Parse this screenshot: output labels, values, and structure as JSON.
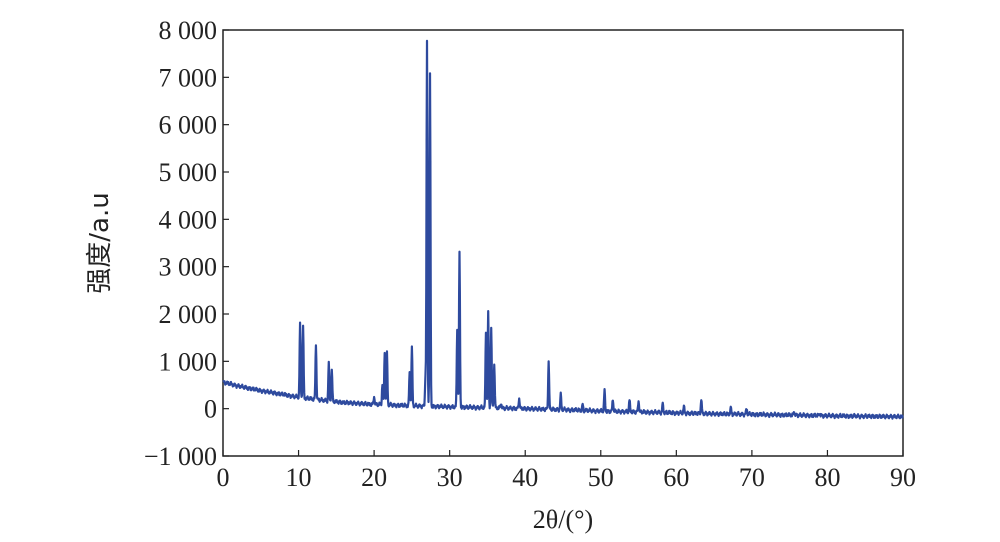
{
  "chart_data": {
    "type": "line",
    "xlabel": "2θ/(°)",
    "ylabel": "强度/a.u",
    "xlim": [
      0,
      90
    ],
    "ylim": [
      -1000,
      8000
    ],
    "xticks": [
      0,
      10,
      20,
      30,
      40,
      50,
      60,
      70,
      80,
      90
    ],
    "xtick_labels": [
      "0",
      "10",
      "20",
      "30",
      "40",
      "50",
      "60",
      "70",
      "80",
      "90"
    ],
    "yticks": [
      -1000,
      0,
      1000,
      2000,
      3000,
      4000,
      5000,
      6000,
      7000,
      8000
    ],
    "ytick_labels": [
      "−1 000",
      "0",
      "1 000",
      "2 000",
      "3 000",
      "4 000",
      "5 000",
      "6 000",
      "7 000",
      "8 000"
    ],
    "grid": false,
    "series_color": "#2e4a9e",
    "baseline": [
      [
        0,
        560
      ],
      [
        2,
        480
      ],
      [
        5,
        380
      ],
      [
        8,
        300
      ],
      [
        10,
        240
      ],
      [
        13,
        180
      ],
      [
        16,
        130
      ],
      [
        20,
        90
      ],
      [
        25,
        60
      ],
      [
        30,
        40
      ],
      [
        35,
        20
      ],
      [
        40,
        0
      ],
      [
        45,
        -20
      ],
      [
        50,
        -50
      ],
      [
        55,
        -70
      ],
      [
        60,
        -90
      ],
      [
        65,
        -110
      ],
      [
        70,
        -120
      ],
      [
        75,
        -135
      ],
      [
        80,
        -150
      ],
      [
        85,
        -160
      ],
      [
        90,
        -170
      ]
    ],
    "peaks": [
      {
        "x": 10.2,
        "y": 1780
      },
      {
        "x": 10.6,
        "y": 1750
      },
      {
        "x": 12.3,
        "y": 1380
      },
      {
        "x": 14.0,
        "y": 960
      },
      {
        "x": 14.4,
        "y": 820
      },
      {
        "x": 20.0,
        "y": 260
      },
      {
        "x": 21.1,
        "y": 520
      },
      {
        "x": 21.4,
        "y": 1180
      },
      {
        "x": 21.7,
        "y": 1170
      },
      {
        "x": 24.7,
        "y": 760
      },
      {
        "x": 25.0,
        "y": 1300
      },
      {
        "x": 26.8,
        "y": 700
      },
      {
        "x": 27.0,
        "y": 7750
      },
      {
        "x": 27.4,
        "y": 7050
      },
      {
        "x": 31.0,
        "y": 1680
      },
      {
        "x": 31.3,
        "y": 3300
      },
      {
        "x": 34.8,
        "y": 1620
      },
      {
        "x": 35.1,
        "y": 2050
      },
      {
        "x": 35.5,
        "y": 1700
      },
      {
        "x": 35.9,
        "y": 950
      },
      {
        "x": 36.8,
        "y": 120
      },
      {
        "x": 39.2,
        "y": 220
      },
      {
        "x": 43.1,
        "y": 1020
      },
      {
        "x": 44.7,
        "y": 300
      },
      {
        "x": 47.6,
        "y": 80
      },
      {
        "x": 50.5,
        "y": 380
      },
      {
        "x": 51.6,
        "y": 200
      },
      {
        "x": 53.8,
        "y": 180
      },
      {
        "x": 55.0,
        "y": 170
      },
      {
        "x": 58.2,
        "y": 100
      },
      {
        "x": 61.0,
        "y": 40
      },
      {
        "x": 63.3,
        "y": 200
      },
      {
        "x": 67.2,
        "y": 20
      },
      {
        "x": 69.3,
        "y": 0
      },
      {
        "x": 75.6,
        "y": -60
      },
      {
        "x": 79.0,
        "y": -100
      }
    ]
  }
}
